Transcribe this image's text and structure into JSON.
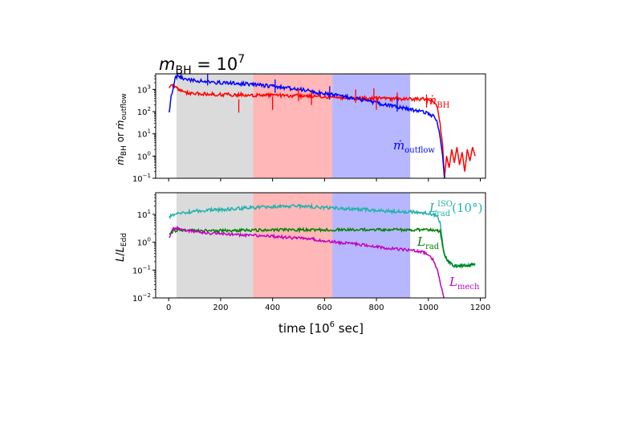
{
  "figure": {
    "title_main": "m",
    "title_sub": "BH",
    "title_eq": " = 10",
    "title_sup": "7",
    "xlabel": "time  [10",
    "xlabel_sup": "6",
    "xlabel_end": " sec]",
    "shade_colors": [
      "#d9d9d9",
      "#ffb3b3",
      "#b3b3ff"
    ]
  },
  "chart_data": [
    {
      "type": "line",
      "panel": "top",
      "yscale": "log",
      "xlim": [
        -50,
        1220
      ],
      "ylim": [
        0.1,
        5000
      ],
      "grid": false,
      "ylabel": {
        "main": "ṁ",
        "sub1": "BH",
        "mid": " or ",
        "main2": "ṁ",
        "sub2": "outflow"
      },
      "yticks": [
        {
          "v": 0.1,
          "b": "10",
          "e": "−1"
        },
        {
          "v": 1,
          "b": "10",
          "e": "0"
        },
        {
          "v": 10,
          "b": "10",
          "e": "1"
        },
        {
          "v": 100,
          "b": "10",
          "e": "2"
        },
        {
          "v": 1000,
          "b": "10",
          "e": "3"
        }
      ],
      "shaded_regions": [
        [
          30,
          325
        ],
        [
          325,
          630
        ],
        [
          630,
          930
        ]
      ],
      "series": [
        {
          "name": "ṁBH",
          "label": {
            "main": "ṁ",
            "sub": "BH"
          },
          "color": "#ff0000",
          "points": [
            [
              2,
              1300
            ],
            [
              20,
              1500
            ],
            [
              40,
              900
            ],
            [
              60,
              700
            ],
            [
              100,
              650
            ],
            [
              140,
              620
            ],
            [
              180,
              600
            ],
            [
              220,
              590
            ],
            [
              260,
              580
            ],
            [
              300,
              560
            ],
            [
              340,
              550
            ],
            [
              380,
              540
            ],
            [
              420,
              530
            ],
            [
              460,
              520
            ],
            [
              500,
              510
            ],
            [
              540,
              480
            ],
            [
              580,
              460
            ],
            [
              620,
              440
            ],
            [
              660,
              420
            ],
            [
              700,
              410
            ],
            [
              740,
              400
            ],
            [
              780,
              400
            ],
            [
              820,
              390
            ],
            [
              860,
              380
            ],
            [
              900,
              380
            ],
            [
              940,
              370
            ],
            [
              980,
              360
            ],
            [
              1000,
              340
            ],
            [
              1020,
              280
            ],
            [
              1035,
              150
            ],
            [
              1045,
              30
            ],
            [
              1055,
              3
            ],
            [
              1062,
              0.1
            ],
            [
              1070,
              1
            ],
            [
              1080,
              0.3
            ],
            [
              1090,
              2
            ],
            [
              1100,
              0.5
            ],
            [
              1110,
              2.5
            ],
            [
              1120,
              0.4
            ],
            [
              1130,
              1.5
            ],
            [
              1140,
              0.2
            ],
            [
              1150,
              2
            ],
            [
              1160,
              0.6
            ],
            [
              1170,
              2.5
            ],
            [
              1180,
              1
            ]
          ]
        },
        {
          "name": "ṁoutflow",
          "label": {
            "main": "ṁ",
            "sub": "outflow"
          },
          "color": "#0000ff",
          "points": [
            [
              2,
              100
            ],
            [
              10,
              500
            ],
            [
              25,
              3500
            ],
            [
              40,
              4000
            ],
            [
              60,
              2800
            ],
            [
              100,
              2500
            ],
            [
              140,
              2300
            ],
            [
              180,
              2100
            ],
            [
              220,
              2000
            ],
            [
              260,
              1850
            ],
            [
              300,
              1750
            ],
            [
              340,
              1600
            ],
            [
              380,
              1450
            ],
            [
              420,
              1300
            ],
            [
              460,
              1150
            ],
            [
              500,
              1000
            ],
            [
              540,
              850
            ],
            [
              580,
              700
            ],
            [
              620,
              600
            ],
            [
              660,
              500
            ],
            [
              700,
              420
            ],
            [
              740,
              340
            ],
            [
              780,
              280
            ],
            [
              820,
              220
            ],
            [
              860,
              180
            ],
            [
              900,
              150
            ],
            [
              940,
              120
            ],
            [
              980,
              100
            ],
            [
              1000,
              85
            ],
            [
              1020,
              60
            ],
            [
              1035,
              30
            ],
            [
              1045,
              8
            ],
            [
              1055,
              1
            ],
            [
              1062,
              0.1
            ]
          ]
        }
      ],
      "spikes": [
        {
          "color": "#ff0000",
          "points": [
            [
              270,
              90
            ],
            [
              400,
              120
            ],
            [
              500,
              300
            ],
            [
              550,
              200
            ],
            [
              720,
              250
            ],
            [
              790,
              280
            ],
            [
              800,
              120
            ],
            [
              880,
              180
            ],
            [
              993,
              150
            ]
          ]
        },
        {
          "color": "#0000ff",
          "points": [
            [
              150,
              1500
            ],
            [
              410,
              700
            ],
            [
              620,
              350
            ],
            [
              880,
              100
            ]
          ]
        }
      ]
    },
    {
      "type": "line",
      "panel": "bottom",
      "yscale": "log",
      "xlim": [
        -50,
        1220
      ],
      "ylim": [
        0.01,
        60
      ],
      "grid": false,
      "xticks": [
        0,
        200,
        400,
        600,
        800,
        1000,
        1200
      ],
      "ylabel": {
        "main": "L",
        "sep": "/",
        "main2": "L",
        "sub2": "Edd"
      },
      "yticks": [
        {
          "v": 0.01,
          "b": "10",
          "e": "−2"
        },
        {
          "v": 0.1,
          "b": "10",
          "e": "−1"
        },
        {
          "v": 1,
          "b": "10",
          "e": "0"
        },
        {
          "v": 10,
          "b": "10",
          "e": "1"
        }
      ],
      "shaded_regions": [
        [
          30,
          325
        ],
        [
          325,
          630
        ],
        [
          630,
          930
        ]
      ],
      "series": [
        {
          "name": "LradISO(10°)",
          "label": {
            "main": "L",
            "sup": "ISO",
            "sub": "rad",
            "tail": "(10°)"
          },
          "color": "#20b2aa",
          "points": [
            [
              2,
              8
            ],
            [
              20,
              10
            ],
            [
              50,
              11
            ],
            [
              100,
              13
            ],
            [
              150,
              14
            ],
            [
              200,
              15
            ],
            [
              250,
              16
            ],
            [
              300,
              17
            ],
            [
              350,
              18
            ],
            [
              400,
              19
            ],
            [
              450,
              19.5
            ],
            [
              500,
              20
            ],
            [
              550,
              19
            ],
            [
              600,
              18
            ],
            [
              650,
              17
            ],
            [
              700,
              16
            ],
            [
              750,
              15
            ],
            [
              800,
              14
            ],
            [
              850,
              13
            ],
            [
              900,
              12.5
            ],
            [
              950,
              12
            ],
            [
              1000,
              11
            ],
            [
              1020,
              10
            ],
            [
              1035,
              8
            ],
            [
              1045,
              5
            ],
            [
              1052,
              1.5
            ],
            [
              1058,
              0.5
            ],
            [
              1065,
              0.3
            ],
            [
              1075,
              0.22
            ],
            [
              1090,
              0.16
            ],
            [
              1100,
              0.14
            ],
            [
              1120,
              0.14
            ],
            [
              1140,
              0.15
            ],
            [
              1160,
              0.15
            ],
            [
              1180,
              0.16
            ]
          ]
        },
        {
          "name": "Lrad",
          "label": {
            "main": "L",
            "sub": "rad"
          },
          "color": "#008000",
          "points": [
            [
              2,
              2
            ],
            [
              20,
              2.6
            ],
            [
              60,
              2.7
            ],
            [
              100,
              2.6
            ],
            [
              200,
              2.6
            ],
            [
              300,
              2.7
            ],
            [
              400,
              2.8
            ],
            [
              500,
              2.8
            ],
            [
              600,
              2.8
            ],
            [
              700,
              2.8
            ],
            [
              800,
              2.8
            ],
            [
              900,
              2.8
            ],
            [
              1000,
              2.8
            ],
            [
              1030,
              2.7
            ],
            [
              1045,
              2.4
            ],
            [
              1052,
              1.2
            ],
            [
              1058,
              0.5
            ],
            [
              1065,
              0.3
            ],
            [
              1075,
              0.22
            ],
            [
              1090,
              0.16
            ],
            [
              1100,
              0.14
            ],
            [
              1120,
              0.14
            ],
            [
              1140,
              0.15
            ],
            [
              1160,
              0.15
            ],
            [
              1180,
              0.16
            ]
          ]
        },
        {
          "name": "Lmech",
          "label": {
            "main": "L",
            "sub": "mech"
          },
          "color": "#c000c0",
          "points": [
            [
              2,
              1.5
            ],
            [
              15,
              3
            ],
            [
              30,
              3.2
            ],
            [
              60,
              2.8
            ],
            [
              100,
              2.4
            ],
            [
              150,
              2.1
            ],
            [
              200,
              2
            ],
            [
              250,
              1.9
            ],
            [
              300,
              1.8
            ],
            [
              350,
              1.7
            ],
            [
              400,
              1.6
            ],
            [
              450,
              1.5
            ],
            [
              500,
              1.4
            ],
            [
              550,
              1.3
            ],
            [
              600,
              1.15
            ],
            [
              650,
              1.0
            ],
            [
              700,
              0.9
            ],
            [
              750,
              0.8
            ],
            [
              800,
              0.7
            ],
            [
              850,
              0.6
            ],
            [
              900,
              0.55
            ],
            [
              950,
              0.5
            ],
            [
              980,
              0.45
            ],
            [
              1000,
              0.35
            ],
            [
              1020,
              0.22
            ],
            [
              1035,
              0.1
            ],
            [
              1045,
              0.04
            ],
            [
              1055,
              0.015
            ],
            [
              1060,
              0.01
            ]
          ]
        }
      ]
    }
  ]
}
